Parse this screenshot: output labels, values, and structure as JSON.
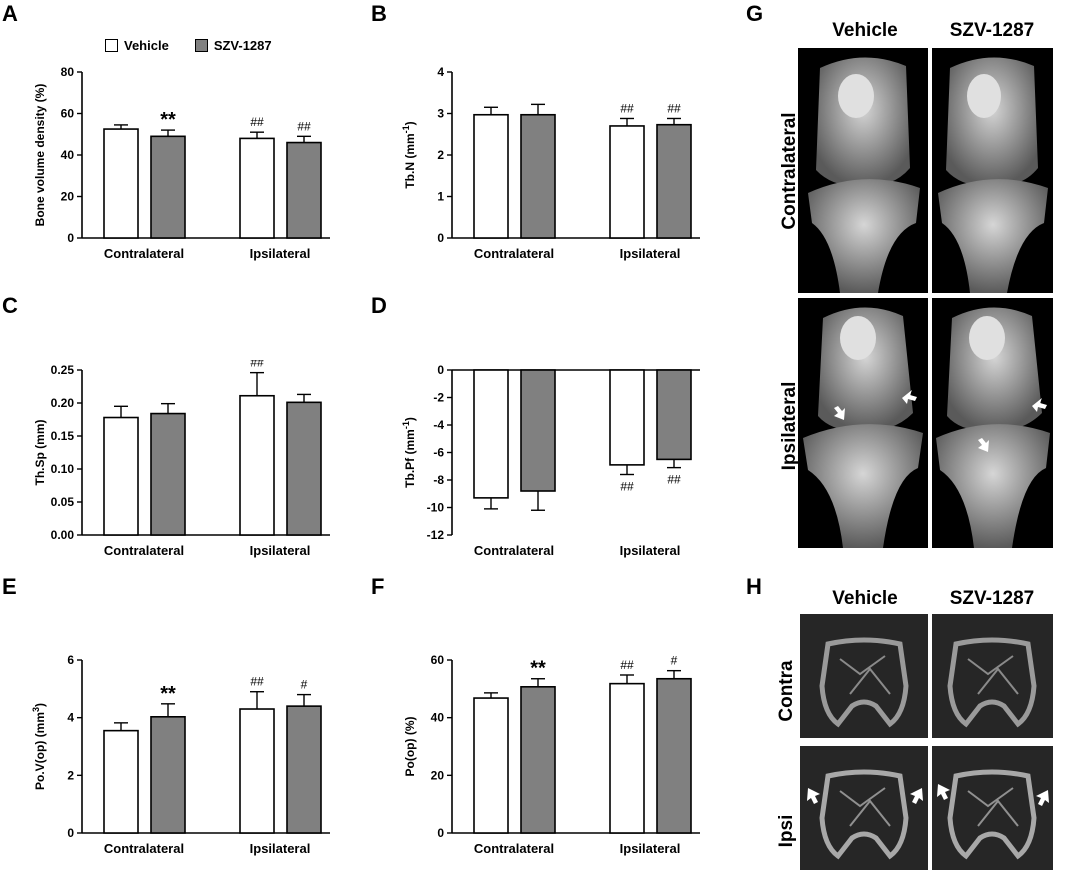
{
  "panels": {
    "A": "A",
    "B": "B",
    "C": "C",
    "D": "D",
    "E": "E",
    "F": "F",
    "G": "G",
    "H": "H"
  },
  "legend": [
    {
      "name": "Vehicle",
      "color": "#ffffff"
    },
    {
      "name": "SZV-1287",
      "color": "#808080"
    }
  ],
  "colors": {
    "vehicle": "#ffffff",
    "szv": "#808080",
    "axis": "#000000"
  },
  "chart_data": [
    {
      "id": "A",
      "type": "bar",
      "categories": [
        "Contralateral",
        "Ipsilateral"
      ],
      "ylabel": "Bone volume density (%)",
      "ylim": [
        0,
        80
      ],
      "yticks": [
        0,
        20,
        40,
        60,
        80
      ],
      "ytick_labels": [
        "0",
        "20",
        "40",
        "60",
        "80"
      ],
      "series": [
        {
          "name": "Vehicle",
          "values": [
            52.5,
            48
          ],
          "errors": [
            2,
            3
          ],
          "marks": [
            "",
            "##"
          ]
        },
        {
          "name": "SZV-1287",
          "values": [
            49,
            46
          ],
          "errors": [
            3,
            3
          ],
          "marks": [
            "**",
            "##"
          ]
        }
      ]
    },
    {
      "id": "B",
      "type": "bar",
      "categories": [
        "Contralateral",
        "Ipsilateral"
      ],
      "ylabel_main": "Tb.N (mm",
      "ylabel_sup": "-1",
      "ylabel_end": ")",
      "ylim": [
        0,
        4
      ],
      "yticks": [
        0,
        1,
        2,
        3,
        4
      ],
      "ytick_labels": [
        "0",
        "1",
        "2",
        "3",
        "4"
      ],
      "series": [
        {
          "name": "Vehicle",
          "values": [
            2.97,
            2.7
          ],
          "errors": [
            0.18,
            0.18
          ],
          "marks": [
            "",
            "##"
          ]
        },
        {
          "name": "SZV-1287",
          "values": [
            2.97,
            2.73
          ],
          "errors": [
            0.25,
            0.15
          ],
          "marks": [
            "",
            "##"
          ]
        }
      ]
    },
    {
      "id": "C",
      "type": "bar",
      "categories": [
        "Contralateral",
        "Ipsilateral"
      ],
      "ylabel": "Th.Sp (mm)",
      "ylim": [
        0,
        0.25
      ],
      "yticks": [
        0,
        0.05,
        0.1,
        0.15,
        0.2,
        0.25
      ],
      "ytick_labels": [
        "0.00",
        "0.05",
        "0.10",
        "0.15",
        "0.20",
        "0.25"
      ],
      "series": [
        {
          "name": "Vehicle",
          "values": [
            0.178,
            0.211
          ],
          "errors": [
            0.017,
            0.035
          ],
          "marks": [
            "",
            "##"
          ]
        },
        {
          "name": "SZV-1287",
          "values": [
            0.184,
            0.201
          ],
          "errors": [
            0.015,
            0.012
          ],
          "marks": [
            "",
            ""
          ]
        }
      ]
    },
    {
      "id": "D",
      "type": "bar",
      "negative": true,
      "categories": [
        "Contralateral",
        "Ipsilateral"
      ],
      "ylabel_main": "Tb.Pf (mm",
      "ylabel_sup": "-1",
      "ylabel_end": ")",
      "ylim": [
        -12,
        0
      ],
      "yticks": [
        0,
        -2,
        -4,
        -6,
        -8,
        -10,
        -12
      ],
      "ytick_labels": [
        "0",
        "-2",
        "-4",
        "-6",
        "-8",
        "-10",
        "-12"
      ],
      "series": [
        {
          "name": "Vehicle",
          "values": [
            -9.3,
            -6.9
          ],
          "errors": [
            0.8,
            0.7
          ],
          "marks": [
            "",
            "##"
          ]
        },
        {
          "name": "SZV-1287",
          "values": [
            -8.8,
            -6.5
          ],
          "errors": [
            1.4,
            0.6
          ],
          "marks": [
            "",
            "##"
          ]
        }
      ]
    },
    {
      "id": "E",
      "type": "bar",
      "categories": [
        "Contralateral",
        "Ipsilateral"
      ],
      "ylabel_main": "Po.V(op) (mm",
      "ylabel_sup": "3",
      "ylabel_end": ")",
      "ylim": [
        0,
        6
      ],
      "yticks": [
        0,
        2,
        4,
        6
      ],
      "ytick_labels": [
        "0",
        "2",
        "4",
        "6"
      ],
      "series": [
        {
          "name": "Vehicle",
          "values": [
            3.55,
            4.3
          ],
          "errors": [
            0.27,
            0.6
          ],
          "marks": [
            "",
            "##"
          ]
        },
        {
          "name": "SZV-1287",
          "values": [
            4.03,
            4.4
          ],
          "errors": [
            0.45,
            0.4
          ],
          "marks": [
            "**",
            "#"
          ]
        }
      ]
    },
    {
      "id": "F",
      "type": "bar",
      "categories": [
        "Contralateral",
        "Ipsilateral"
      ],
      "ylabel": "Po(op) (%)",
      "ylim": [
        0,
        60
      ],
      "yticks": [
        0,
        20,
        40,
        60
      ],
      "ytick_labels": [
        "0",
        "20",
        "40",
        "60"
      ],
      "series": [
        {
          "name": "Vehicle",
          "values": [
            46.8,
            51.8
          ],
          "errors": [
            1.8,
            3
          ],
          "marks": [
            "",
            "##"
          ]
        },
        {
          "name": "SZV-1287",
          "values": [
            50.7,
            53.5
          ],
          "errors": [
            2.8,
            2.8
          ],
          "marks": [
            "**",
            "#"
          ]
        }
      ]
    }
  ],
  "panel_g": {
    "columns": [
      "Vehicle",
      "SZV-1287"
    ],
    "rows": [
      "Contralateral",
      "Ipsilateral"
    ]
  },
  "panel_h": {
    "columns": [
      "Vehicle",
      "SZV-1287"
    ],
    "rows": [
      "Contra",
      "Ipsi"
    ]
  }
}
